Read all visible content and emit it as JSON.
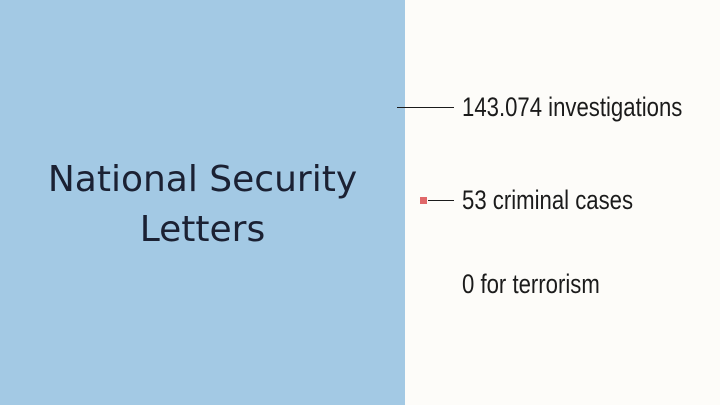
{
  "title": {
    "line1": "National Security",
    "line2": "Letters"
  },
  "stats": [
    {
      "text": "143.074 investigations"
    },
    {
      "text": "53 criminal cases"
    },
    {
      "text": "0 for terrorism"
    }
  ],
  "colors": {
    "panel": "#a3c9e4",
    "background": "#fdfcf9",
    "marker": "#e0686a",
    "text": "#1b2133"
  }
}
